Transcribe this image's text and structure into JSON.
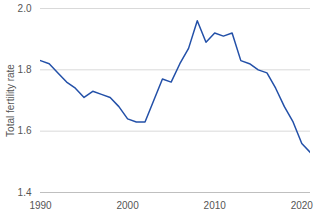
{
  "chart_data": {
    "type": "line",
    "y_label": "Total fertility rate",
    "x": [
      1990,
      1991,
      1992,
      1993,
      1994,
      1995,
      1996,
      1997,
      1998,
      1999,
      2000,
      2001,
      2002,
      2003,
      2004,
      2005,
      2006,
      2007,
      2008,
      2009,
      2010,
      2011,
      2012,
      2013,
      2014,
      2015,
      2016,
      2017,
      2018,
      2019,
      2020,
      2021
    ],
    "values": [
      1.83,
      1.82,
      1.79,
      1.76,
      1.74,
      1.71,
      1.73,
      1.72,
      1.71,
      1.68,
      1.64,
      1.63,
      1.63,
      1.7,
      1.77,
      1.76,
      1.82,
      1.87,
      1.96,
      1.89,
      1.92,
      1.91,
      1.92,
      1.83,
      1.82,
      1.8,
      1.79,
      1.74,
      1.68,
      1.63,
      1.56,
      1.53
    ],
    "color": "#2350a8",
    "xlim": [
      1990,
      2021
    ],
    "xticks": [
      1990,
      2000,
      2010,
      2020
    ],
    "ylim": [
      1.4,
      2.0
    ],
    "yticks": [
      1.4,
      1.6,
      1.8,
      {
        "value": 2.0,
        "label": "2.0"
      }
    ],
    "grid": true
  }
}
